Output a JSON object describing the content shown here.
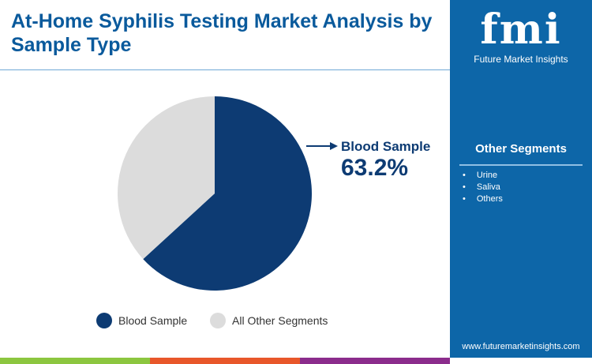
{
  "title": "At-Home Syphilis Testing Market Analysis by Sample Type",
  "logo": {
    "mark": "fmi",
    "name": "Future Market Insights"
  },
  "sidebar": {
    "title": "Other Segments",
    "items": [
      "Urine",
      "Saliva",
      "Others"
    ],
    "url": "www.futuremarketinsights.com"
  },
  "callout": {
    "label": "Blood Sample",
    "value": "63.2%"
  },
  "colors": {
    "blood": "#0d3b73",
    "other": "#dcdcdc",
    "panel": "#0d66a8",
    "strip": [
      "#8cc63f",
      "#e8572a",
      "#8b2c8c"
    ]
  },
  "chart_data": {
    "type": "pie",
    "title": "At-Home Syphilis Testing Market Analysis by Sample Type",
    "slices": [
      {
        "label": "Blood Sample",
        "value": 63.2
      },
      {
        "label": "All Other Segments",
        "value": 36.8
      }
    ],
    "legend": "bottom"
  }
}
